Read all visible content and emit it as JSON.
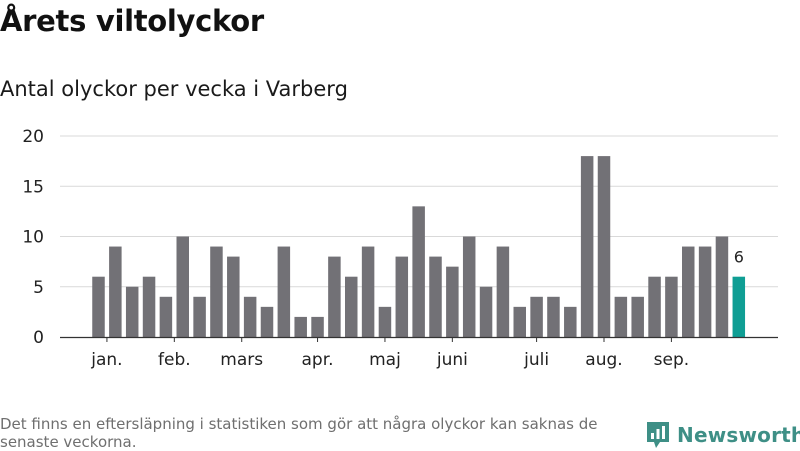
{
  "header": {
    "title": "Årets viltolyckor",
    "subtitle": "Antal olyckor per vecka i Varberg"
  },
  "footer": {
    "note": "Det finns en eftersläpning i statistiken som gör att några olyckor kan saknas de senaste veckorna.",
    "brand": "Newsworthy",
    "brand_icon": "bar-chart-logo-icon"
  },
  "colors": {
    "bar": "#727176",
    "highlight": "#0f9e94",
    "grid": "#d9d9d9",
    "axis": "#333333",
    "brand": "#3e8f86"
  },
  "chart_data": {
    "type": "bar",
    "x": [
      1,
      2,
      3,
      4,
      5,
      6,
      7,
      8,
      9,
      10,
      11,
      12,
      13,
      14,
      15,
      16,
      17,
      18,
      19,
      20,
      21,
      22,
      23,
      24,
      25,
      26,
      27,
      28,
      29,
      30,
      31,
      32,
      33,
      34,
      35,
      36,
      37,
      38,
      39
    ],
    "values": [
      6,
      9,
      5,
      6,
      4,
      10,
      4,
      9,
      8,
      4,
      3,
      9,
      2,
      2,
      8,
      6,
      9,
      3,
      8,
      13,
      8,
      7,
      10,
      5,
      9,
      3,
      4,
      4,
      3,
      18,
      18,
      4,
      4,
      6,
      6,
      9,
      9,
      10,
      6
    ],
    "highlight_index": 38,
    "highlight_label": "6",
    "ylim": [
      0,
      20
    ],
    "yticks": [
      0,
      5,
      10,
      15,
      20
    ],
    "month_labels": [
      {
        "label": "jan.",
        "at": 1.5
      },
      {
        "label": "feb.",
        "at": 5.5
      },
      {
        "label": "mars",
        "at": 9.5
      },
      {
        "label": "apr.",
        "at": 14.0
      },
      {
        "label": "maj",
        "at": 18.0
      },
      {
        "label": "juni",
        "at": 22.0
      },
      {
        "label": "juli",
        "at": 27.0
      },
      {
        "label": "aug.",
        "at": 31.0
      },
      {
        "label": "sep.",
        "at": 35.0
      }
    ],
    "grid": true,
    "legend": "none"
  }
}
